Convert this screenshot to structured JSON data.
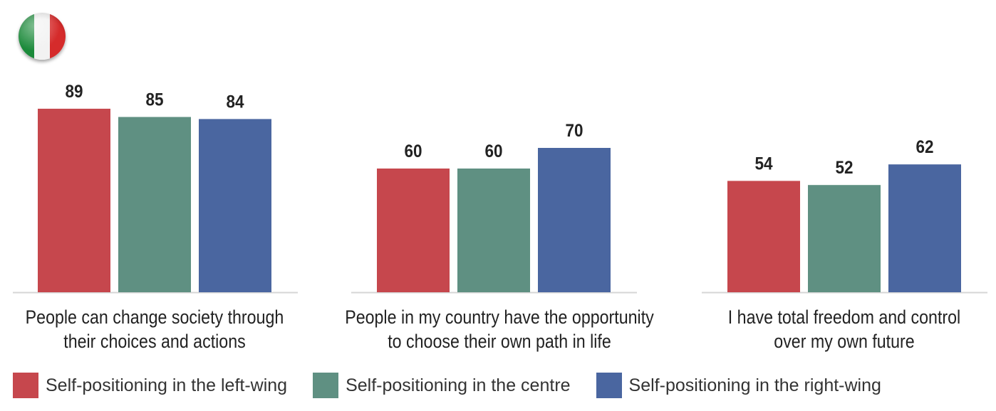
{
  "flag": {
    "icon": "italy-flag-icon",
    "colors": [
      "#1b8a3a",
      "#f2f2f2",
      "#d52b2b"
    ]
  },
  "chart_data": {
    "type": "bar",
    "categories": [
      [
        "People can change society through",
        "their choices and actions"
      ],
      [
        "People in my country have the opportunity",
        "to choose their own path in life"
      ],
      [
        "I have total freedom and control",
        "over my own future"
      ]
    ],
    "series": [
      {
        "name": "Self-positioning in the left-wing",
        "color": "#c6474d",
        "values": [
          89,
          60,
          54
        ]
      },
      {
        "name": "Self-positioning in the centre",
        "color": "#5f9082",
        "values": [
          85,
          60,
          52
        ]
      },
      {
        "name": "Self-positioning in the right-wing",
        "color": "#4a66a0",
        "values": [
          84,
          70,
          62
        ]
      }
    ],
    "ylim": [
      0,
      100
    ],
    "grid": false,
    "data_labels": true,
    "legend_position": "bottom"
  }
}
